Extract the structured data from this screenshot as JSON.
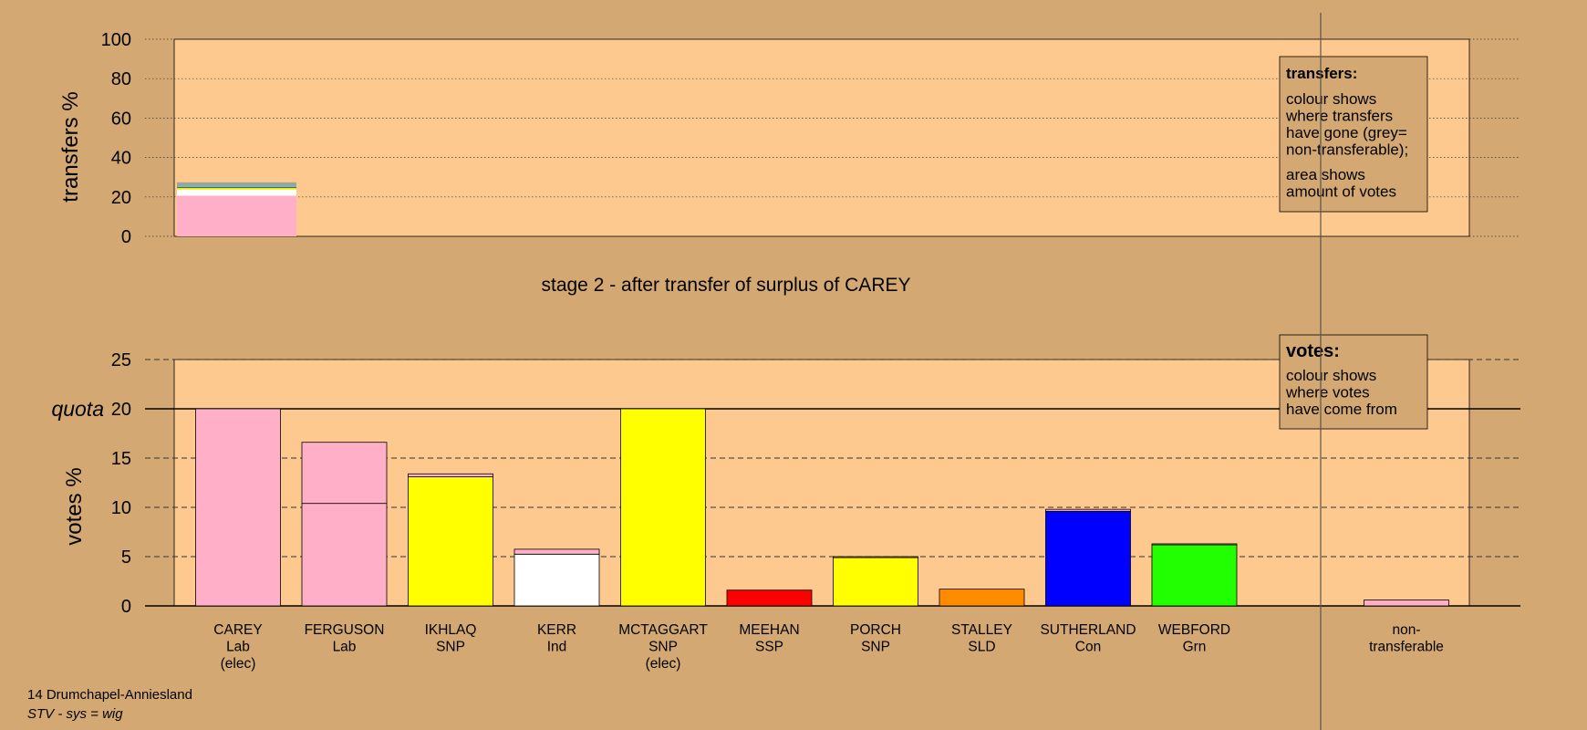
{
  "chart_data": [
    {
      "type": "stacked-bar",
      "ylabel": "transfers %",
      "ylim": [
        0,
        100
      ],
      "yticks": [
        0,
        20,
        40,
        60,
        80,
        100
      ],
      "bars": [
        {
          "segments": [
            {
              "color": "#ffb0c8",
              "value": 20.6
            },
            {
              "color": "#ffffff",
              "value": 3.1
            },
            {
              "color": "#ffff00",
              "value": 0.8
            },
            {
              "color": "#0000ff",
              "value": 0.3
            },
            {
              "color": "#22ff00",
              "value": 0.3
            },
            {
              "color": "#94a8a0",
              "value": 2.3
            }
          ]
        }
      ],
      "legend_box": {
        "title": "transfers:",
        "paragraphs": [
          [
            "colour shows",
            "where transfers",
            "have gone (grey=",
            "non-transferable);"
          ],
          [
            "area shows",
            "amount of votes"
          ]
        ]
      }
    },
    {
      "type": "stacked-bar",
      "title": "stage 2 - after transfer of surplus of CAREY",
      "ylabel": "votes %",
      "ylim": [
        0,
        25
      ],
      "yticks": [
        0,
        5,
        10,
        15,
        20,
        25
      ],
      "quota": {
        "label": "quota",
        "value": 20
      },
      "categories": [
        [
          "CAREY",
          "Lab",
          "(elec)"
        ],
        [
          "FERGUSON",
          "Lab"
        ],
        [
          "IKHLAQ",
          "SNP"
        ],
        [
          "KERR",
          "Ind"
        ],
        [
          "MCTAGGART",
          "SNP",
          "(elec)"
        ],
        [
          "MEEHAN",
          "SSP"
        ],
        [
          "PORCH",
          "SNP"
        ],
        [
          "STALLEY",
          "SLD"
        ],
        [
          "SUTHERLAND",
          "Con"
        ],
        [
          "WEBFORD",
          "Grn"
        ],
        [
          "non-",
          "transferable"
        ]
      ],
      "bars": [
        {
          "segments": [
            {
              "color": "#ffb0c8",
              "value": 20
            }
          ]
        },
        {
          "segments": [
            {
              "color": "#ffb0c8",
              "value": 10.4
            },
            {
              "color": "#ffb0c8",
              "value": 6.2
            }
          ]
        },
        {
          "segments": [
            {
              "color": "#ffff00",
              "value": 13.1
            },
            {
              "color": "#ffb0c8",
              "value": 0.3
            }
          ]
        },
        {
          "segments": [
            {
              "color": "#ffffff",
              "value": 5.25
            },
            {
              "color": "#ffb0c8",
              "value": 0.5
            }
          ]
        },
        {
          "segments": [
            {
              "color": "#ffff00",
              "value": 20
            }
          ]
        },
        {
          "segments": [
            {
              "color": "#ff0000",
              "value": 1.6
            }
          ]
        },
        {
          "segments": [
            {
              "color": "#ffff00",
              "value": 4.9
            },
            {
              "color": "#ffb0c8",
              "value": 0.1
            }
          ]
        },
        {
          "segments": [
            {
              "color": "#ff8c00",
              "value": 1.7
            }
          ]
        },
        {
          "segments": [
            {
              "color": "#0000ff",
              "value": 9.6
            },
            {
              "color": "#ffb0c8",
              "value": 0.2
            }
          ]
        },
        {
          "segments": [
            {
              "color": "#22ff00",
              "value": 6.2
            },
            {
              "color": "#ffb0c8",
              "value": 0.1
            }
          ]
        },
        {
          "segments": [
            {
              "color": "#ffb0c8",
              "value": 0.6
            }
          ]
        }
      ],
      "legend_box": {
        "title": "votes:",
        "paragraphs": [
          [
            "colour shows",
            "where votes",
            "have come from"
          ]
        ]
      }
    }
  ],
  "footer": {
    "district": "14 Drumchapel-Anniesland",
    "system": "STV - sys = wig"
  }
}
